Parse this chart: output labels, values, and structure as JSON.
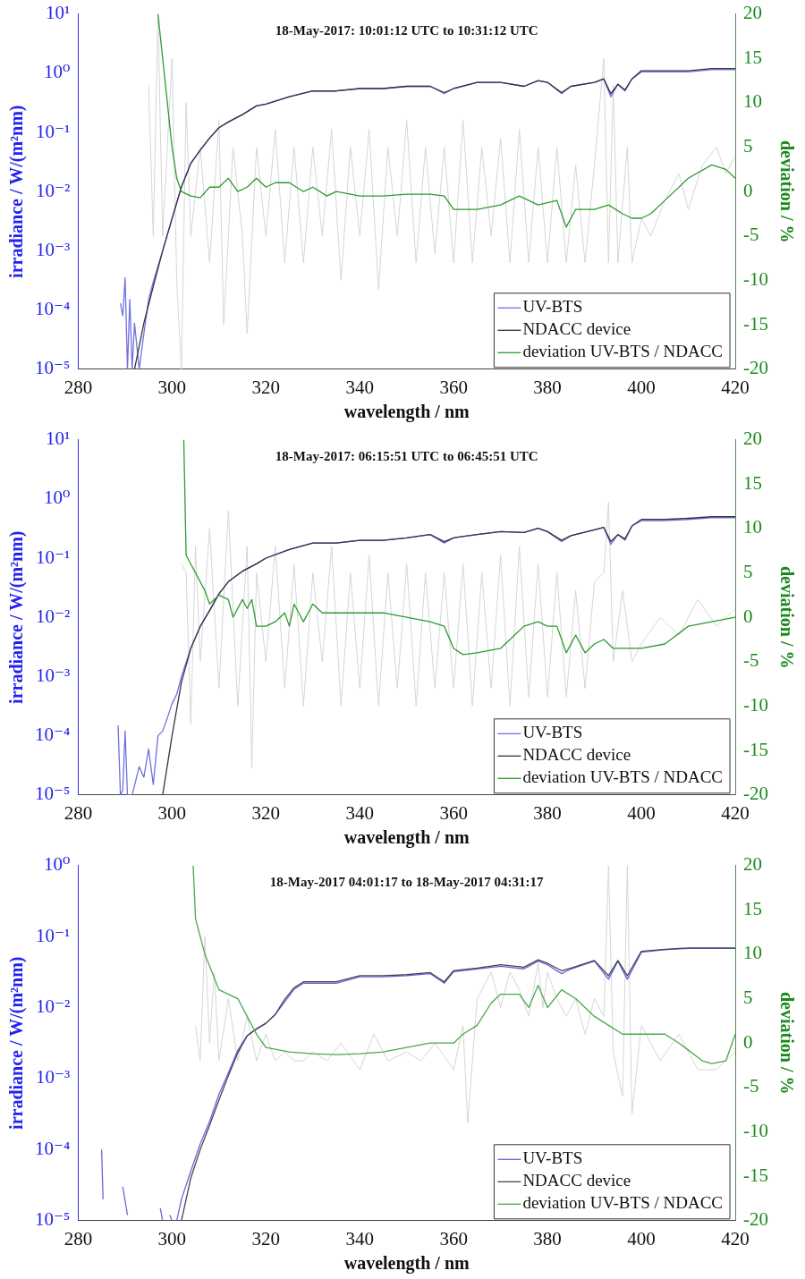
{
  "chart_data": [
    {
      "type": "line",
      "title": "18-May-2017: 10:01:12 UTC to 10:31:12 UTC",
      "xlabel": "wavelength / nm",
      "ylabel": "irradiance / W/(m²nm)",
      "y2label": "deviation / %",
      "log": "y",
      "legend": "bottom right",
      "xlim": [
        280,
        420
      ],
      "xticks": [
        280,
        300,
        320,
        340,
        360,
        380,
        400,
        420
      ],
      "ylim": [
        1e-05,
        10
      ],
      "yticks": [
        {
          "value": 1e-05,
          "label": "10⁻⁵"
        },
        {
          "value": 0.0001,
          "label": "10⁻⁴"
        },
        {
          "value": 0.001,
          "label": "10⁻³"
        },
        {
          "value": 0.01,
          "label": "10⁻²"
        },
        {
          "value": 0.1,
          "label": "10⁻¹"
        },
        {
          "value": 1,
          "label": "10⁰"
        },
        {
          "value": 10,
          "label": "10¹"
        }
      ],
      "y2lim": [
        -20,
        20
      ],
      "y2ticks": [
        -20,
        -15,
        -10,
        -5,
        0,
        5,
        10,
        15,
        20
      ],
      "series": [
        {
          "color": "#d6d6d6",
          "axis": "y2",
          "x": [
            295,
            296,
            297,
            298,
            300,
            301,
            302,
            303,
            304,
            306,
            308,
            310,
            311,
            313,
            315,
            316,
            318,
            320,
            322,
            324,
            326,
            328,
            330,
            332,
            334,
            336,
            338,
            340,
            342,
            344,
            346,
            348,
            350,
            352,
            354,
            356,
            358,
            360,
            362,
            364,
            366,
            368,
            370,
            372,
            374,
            376,
            378,
            380,
            382,
            384,
            386,
            388,
            390,
            392,
            393,
            394,
            395,
            397,
            398,
            400,
            402,
            405,
            408,
            410,
            413,
            416,
            418,
            420
          ],
          "values": [
            12,
            -5,
            20,
            -5,
            15,
            -10,
            -20,
            10,
            -5,
            5,
            -8,
            8,
            -15,
            5,
            -5,
            -16,
            5,
            -5,
            7,
            -8,
            5,
            -8,
            5,
            -5,
            7,
            -10,
            5,
            -5,
            7,
            -11,
            5,
            -5,
            8,
            -8,
            5,
            -7,
            5,
            -8,
            8,
            -8,
            5,
            -5,
            6,
            -8,
            7,
            -8,
            5,
            -8,
            5,
            -8,
            3,
            -8,
            3,
            15,
            -8,
            12,
            -8,
            5,
            -8,
            -3,
            -5,
            -1,
            2,
            -2,
            3,
            5,
            2,
            4
          ]
        },
        {
          "name": "UV-BTS",
          "color": "#7070e0",
          "x": [
            289,
            289.5,
            290,
            290.5,
            291,
            291.5,
            292,
            293,
            294,
            295,
            296,
            298,
            300,
            302,
            304,
            306,
            308,
            310,
            312,
            315,
            318,
            320,
            325,
            330,
            335,
            340,
            345,
            350,
            355,
            358,
            360,
            365,
            370,
            375,
            378,
            380,
            383,
            385,
            390,
            392,
            393.5,
            395,
            396.5,
            398,
            400,
            405,
            410,
            415,
            420
          ],
          "values": [
            0.00013,
            8e-05,
            0.00035,
            1e-05,
            0.00015,
            1e-05,
            6e-05,
            1e-05,
            4e-05,
            0.00015,
            0.0003,
            0.001,
            0.0035,
            0.012,
            0.03,
            0.05,
            0.08,
            0.12,
            0.15,
            0.2,
            0.28,
            0.3,
            0.4,
            0.5,
            0.5,
            0.55,
            0.55,
            0.6,
            0.6,
            0.45,
            0.55,
            0.7,
            0.7,
            0.6,
            0.75,
            0.7,
            0.45,
            0.6,
            0.7,
            0.8,
            0.4,
            0.65,
            0.5,
            0.8,
            1.05,
            1.05,
            1.05,
            1.15,
            1.15
          ]
        },
        {
          "name": "NDACC device",
          "color": "#333344",
          "x": [
            292,
            294,
            296,
            298,
            300,
            302,
            304,
            306,
            308,
            310,
            312,
            315,
            318,
            320,
            325,
            330,
            335,
            340,
            345,
            350,
            355,
            358,
            360,
            365,
            370,
            375,
            378,
            380,
            383,
            385,
            390,
            392,
            393.5,
            395,
            396.5,
            398,
            400,
            405,
            410,
            415,
            420
          ],
          "values": [
            1e-05,
            6e-05,
            0.00025,
            0.001,
            0.0035,
            0.012,
            0.03,
            0.05,
            0.08,
            0.12,
            0.15,
            0.2,
            0.28,
            0.3,
            0.4,
            0.5,
            0.5,
            0.55,
            0.55,
            0.6,
            0.6,
            0.47,
            0.55,
            0.7,
            0.7,
            0.6,
            0.75,
            0.7,
            0.47,
            0.6,
            0.7,
            0.8,
            0.45,
            0.65,
            0.52,
            0.8,
            1.1,
            1.1,
            1.1,
            1.2,
            1.2
          ]
        },
        {
          "name": "deviation UV-BTS / NDACC",
          "color": "#2e9a2e",
          "axis": "y2",
          "x": [
            297,
            298,
            299,
            300,
            301,
            302,
            304,
            306,
            308,
            310,
            312,
            314,
            316,
            318,
            320,
            322,
            325,
            328,
            330,
            333,
            335,
            340,
            345,
            350,
            355,
            358,
            360,
            365,
            370,
            374,
            378,
            382,
            384,
            386,
            390,
            393,
            396,
            398,
            400,
            402,
            405,
            410,
            415,
            418,
            420
          ],
          "values": [
            20,
            15,
            10,
            5,
            1.5,
            0,
            -0.5,
            -0.7,
            0.5,
            0.5,
            1.5,
            0,
            0.5,
            1.5,
            0.5,
            1,
            1,
            0,
            0.5,
            -0.5,
            0,
            -0.5,
            -0.5,
            -0.3,
            -0.3,
            -0.5,
            -2,
            -2,
            -1.5,
            -0.5,
            -1.5,
            -1,
            -4,
            -2,
            -2,
            -1.5,
            -2.5,
            -3,
            -3,
            -2.5,
            -1,
            1.5,
            3,
            2.5,
            1.5
          ]
        }
      ]
    },
    {
      "type": "line",
      "title": "18-May-2017: 06:15:51 UTC to 06:45:51 UTC",
      "xlabel": "wavelength / nm",
      "ylabel": "irradiance / W/(m²nm)",
      "y2label": "deviation / %",
      "log": "y",
      "legend": "bottom right",
      "xlim": [
        280,
        420
      ],
      "xticks": [
        280,
        300,
        320,
        340,
        360,
        380,
        400,
        420
      ],
      "ylim": [
        1e-05,
        10
      ],
      "yticks": [
        {
          "value": 1e-05,
          "label": "10⁻⁵"
        },
        {
          "value": 0.0001,
          "label": "10⁻⁴"
        },
        {
          "value": 0.001,
          "label": "10⁻³"
        },
        {
          "value": 0.01,
          "label": "10⁻²"
        },
        {
          "value": 0.1,
          "label": "10⁻¹"
        },
        {
          "value": 1,
          "label": "10⁰"
        },
        {
          "value": 10,
          "label": "10¹"
        }
      ],
      "y2lim": [
        -20,
        20
      ],
      "y2ticks": [
        -20,
        -15,
        -10,
        -5,
        0,
        5,
        10,
        15,
        20
      ],
      "series": [
        {
          "color": "#d6d6d6",
          "axis": "y2",
          "x": [
            302,
            303,
            304,
            305,
            306,
            308,
            310,
            312,
            314,
            316,
            317,
            318,
            320,
            322,
            324,
            326,
            328,
            330,
            332,
            334,
            336,
            338,
            340,
            342,
            344,
            346,
            348,
            350,
            352,
            354,
            356,
            358,
            360,
            362,
            364,
            366,
            368,
            370,
            372,
            374,
            376,
            378,
            380,
            382,
            384,
            386,
            388,
            390,
            392,
            393,
            394,
            396,
            398,
            400,
            404,
            408,
            412,
            416,
            420
          ],
          "values": [
            6,
            5,
            -12,
            8,
            -5,
            10,
            -8,
            12,
            -10,
            8,
            -17,
            5,
            -5,
            8,
            -8,
            6,
            -10,
            5,
            -5,
            8,
            -10,
            5,
            -8,
            7,
            -10,
            5,
            -8,
            6,
            -10,
            5,
            -8,
            5,
            -8,
            6,
            -10,
            5,
            -8,
            7,
            -10,
            8,
            -9,
            6,
            -9,
            5,
            -9,
            3,
            -8,
            4,
            5,
            13,
            -5,
            3,
            -5,
            -3,
            0,
            -2,
            2,
            -1,
            1
          ]
        },
        {
          "name": "UV-BTS",
          "color": "#7070e0",
          "x": [
            288.5,
            289,
            289.5,
            290,
            290.5,
            291.5,
            293,
            294,
            295,
            296,
            297,
            298,
            299,
            300,
            301,
            302,
            304,
            306,
            308,
            310,
            312,
            315,
            318,
            320,
            325,
            330,
            335,
            340,
            345,
            350,
            355,
            358,
            360,
            365,
            370,
            375,
            378,
            380,
            383,
            385,
            390,
            392,
            393.5,
            395,
            396.5,
            398,
            400,
            405,
            410,
            415,
            420
          ],
          "values": [
            0.00015,
            1e-05,
            1.2e-05,
            0.00012,
            1e-05,
            1e-05,
            3e-05,
            2e-05,
            6e-05,
            1.5e-05,
            0.0001,
            0.00012,
            0.0002,
            0.00035,
            0.0005,
            0.001,
            0.003,
            0.007,
            0.013,
            0.025,
            0.04,
            0.06,
            0.08,
            0.1,
            0.14,
            0.18,
            0.18,
            0.2,
            0.2,
            0.22,
            0.25,
            0.18,
            0.22,
            0.25,
            0.28,
            0.27,
            0.32,
            0.28,
            0.19,
            0.24,
            0.3,
            0.33,
            0.17,
            0.25,
            0.2,
            0.35,
            0.43,
            0.43,
            0.45,
            0.48,
            0.48
          ]
        },
        {
          "name": "NDACC device",
          "color": "#333344",
          "x": [
            298,
            300,
            302,
            304,
            306,
            308,
            310,
            312,
            315,
            318,
            320,
            325,
            330,
            335,
            340,
            345,
            350,
            355,
            358,
            360,
            365,
            370,
            375,
            378,
            380,
            383,
            385,
            390,
            392,
            393.5,
            395,
            396.5,
            398,
            400,
            405,
            410,
            415,
            420
          ],
          "values": [
            1e-05,
            0.0001,
            0.0008,
            0.003,
            0.007,
            0.013,
            0.025,
            0.04,
            0.06,
            0.08,
            0.1,
            0.14,
            0.18,
            0.18,
            0.2,
            0.2,
            0.22,
            0.25,
            0.19,
            0.22,
            0.25,
            0.28,
            0.27,
            0.32,
            0.28,
            0.2,
            0.24,
            0.3,
            0.33,
            0.19,
            0.25,
            0.21,
            0.35,
            0.45,
            0.45,
            0.47,
            0.5,
            0.5
          ]
        },
        {
          "name": "deviation UV-BTS / NDACC",
          "color": "#2e9a2e",
          "axis": "y2",
          "x": [
            302.5,
            303,
            305,
            307,
            308,
            310,
            312,
            313,
            315,
            316,
            317,
            318,
            320,
            322,
            324,
            325,
            326,
            328,
            330,
            332,
            335,
            340,
            345,
            350,
            355,
            358,
            360,
            362,
            365,
            370,
            373,
            375,
            378,
            380,
            382,
            384,
            386,
            388,
            390,
            392,
            394,
            396,
            400,
            405,
            410,
            415,
            420
          ],
          "values": [
            20,
            7,
            5,
            3,
            1.5,
            2.5,
            2,
            0,
            2,
            1,
            2,
            -1,
            -1,
            -0.5,
            0.5,
            -1,
            1.5,
            -0.5,
            1.5,
            0.5,
            0.5,
            0.5,
            0.5,
            0,
            -0.5,
            -1,
            -3.5,
            -4.2,
            -4,
            -3.5,
            -2,
            -1,
            -0.5,
            -1,
            -1,
            -4,
            -2,
            -4,
            -3,
            -2.5,
            -3.5,
            -3.5,
            -3.5,
            -3,
            -1,
            -0.5,
            0
          ]
        }
      ]
    },
    {
      "type": "line",
      "title": "18-May-2017 04:01:17 to 18-May-2017 04:31:17",
      "xlabel": "wavelength / nm",
      "ylabel": "irradiance / W/(m²nm)",
      "y2label": "deviation / %",
      "log": "y",
      "legend": "bottom right",
      "xlim": [
        280,
        420
      ],
      "xticks": [
        280,
        300,
        320,
        340,
        360,
        380,
        400,
        420
      ],
      "ylim": [
        1e-05,
        1
      ],
      "yticks": [
        {
          "value": 1e-05,
          "label": "10⁻⁵"
        },
        {
          "value": 0.0001,
          "label": "10⁻⁴"
        },
        {
          "value": 0.001,
          "label": "10⁻³"
        },
        {
          "value": 0.01,
          "label": "10⁻²"
        },
        {
          "value": 0.1,
          "label": "10⁻¹"
        },
        {
          "value": 1,
          "label": "10⁰"
        }
      ],
      "y2lim": [
        -20,
        20
      ],
      "y2ticks": [
        -20,
        -15,
        -10,
        -5,
        0,
        5,
        10,
        15,
        20
      ],
      "series": [
        {
          "color": "#d6d6d6",
          "axis": "y2",
          "x": [
            305,
            306,
            307,
            308,
            309,
            310,
            312,
            314,
            316,
            318,
            320,
            322,
            324,
            326,
            328,
            330,
            333,
            336,
            340,
            343,
            346,
            350,
            353,
            356,
            360,
            362,
            363,
            365,
            368,
            370,
            372,
            374,
            376,
            378,
            379,
            380,
            382,
            384,
            386,
            388,
            390,
            392,
            393,
            394,
            396,
            397,
            398,
            400,
            404,
            408,
            412,
            416,
            420
          ],
          "values": [
            2,
            -2,
            12,
            0,
            8,
            -2,
            5,
            -2,
            3,
            -2,
            1,
            -2,
            -1,
            -2,
            -2,
            -1,
            -2,
            0,
            -3,
            1,
            -2,
            -1,
            -2,
            0,
            -3,
            2,
            -9,
            5,
            8,
            4,
            8,
            6,
            3,
            9,
            4,
            8,
            5,
            3,
            5,
            1,
            5,
            3,
            20,
            -1,
            -6,
            20,
            -8,
            2,
            -2,
            1,
            -3,
            -3,
            -1
          ]
        },
        {
          "name": "UV-BTS",
          "color": "#6666dd",
          "x": [
            285,
            285.3,
            285.6,
            289.5,
            290.5,
            290.8,
            297.5,
            298,
            298.2,
            299.5,
            300,
            300.2,
            301,
            302,
            304,
            306,
            308,
            310,
            312,
            314,
            316,
            318,
            320,
            322,
            324,
            326,
            328,
            330,
            335,
            340,
            345,
            350,
            355,
            358,
            360,
            365,
            370,
            375,
            378,
            380,
            383,
            385,
            390,
            393,
            395,
            397,
            400,
            405,
            410,
            415,
            420
          ],
          "values": [
            0.0001,
            2e-05,
            null,
            3e-05,
            1.2e-05,
            null,
            1.5e-05,
            1e-05,
            null,
            1.2e-05,
            1e-05,
            null,
            1e-05,
            2e-05,
            5e-05,
            0.00012,
            0.00025,
            0.0006,
            0.0012,
            0.0025,
            0.004,
            0.005,
            0.006,
            0.008,
            0.012,
            0.018,
            0.022,
            0.022,
            0.022,
            0.027,
            0.027,
            0.028,
            0.03,
            0.022,
            0.032,
            0.035,
            0.038,
            0.035,
            0.045,
            0.04,
            0.03,
            0.035,
            0.045,
            0.025,
            0.045,
            0.025,
            0.06,
            0.065,
            0.068,
            0.068,
            0.068
          ]
        },
        {
          "name": "NDACC device",
          "color": "#444455",
          "x": [
            302,
            304,
            306,
            308,
            310,
            312,
            314,
            316,
            318,
            320,
            322,
            324,
            326,
            328,
            330,
            335,
            340,
            345,
            350,
            355,
            358,
            360,
            365,
            370,
            375,
            378,
            380,
            383,
            385,
            390,
            393,
            395,
            397,
            400,
            405,
            410,
            415,
            420
          ],
          "values": [
            1e-05,
            4e-05,
            0.0001,
            0.00022,
            0.0005,
            0.0011,
            0.0023,
            0.004,
            0.005,
            0.006,
            0.008,
            0.013,
            0.019,
            0.023,
            0.023,
            0.023,
            0.028,
            0.028,
            0.029,
            0.031,
            0.023,
            0.033,
            0.036,
            0.04,
            0.037,
            0.047,
            0.042,
            0.033,
            0.036,
            0.046,
            0.028,
            0.046,
            0.028,
            0.062,
            0.066,
            0.069,
            0.069,
            0.069
          ]
        },
        {
          "name": "deviation UV-BTS / NDACC",
          "color": "#4aa84a",
          "axis": "y2",
          "x": [
            304.5,
            305,
            307,
            310,
            314,
            316,
            318,
            320,
            325,
            330,
            335,
            340,
            345,
            350,
            355,
            360,
            362,
            365,
            368,
            370,
            374,
            376,
            378,
            380,
            383,
            386,
            390,
            393,
            396,
            400,
            405,
            408,
            413,
            415,
            418,
            420
          ],
          "values": [
            20,
            14,
            10,
            6,
            5,
            3,
            1,
            -0.5,
            -1,
            -1.2,
            -1.3,
            -1.2,
            -1,
            -0.5,
            0,
            0,
            1,
            2,
            4.5,
            5.5,
            5.5,
            4,
            6.5,
            4,
            6,
            5,
            3,
            2,
            1,
            1,
            1,
            0,
            -2,
            -2.3,
            -2,
            1
          ]
        }
      ]
    }
  ]
}
